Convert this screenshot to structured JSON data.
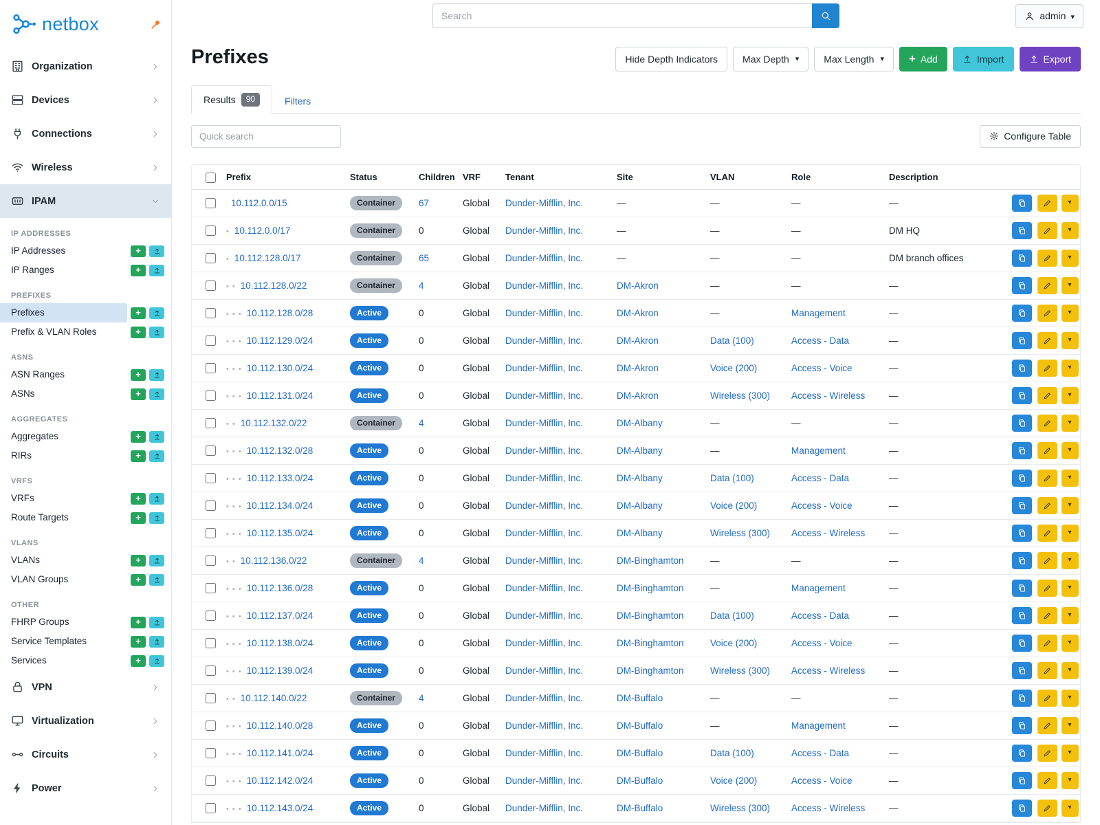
{
  "brand": {
    "name": "netbox"
  },
  "topbar": {
    "search_placeholder": "Search",
    "user_label": "admin"
  },
  "sidebar": {
    "top_items": [
      {
        "label": "Organization",
        "icon": "building-icon"
      },
      {
        "label": "Devices",
        "icon": "devices-icon"
      },
      {
        "label": "Connections",
        "icon": "connections-icon"
      },
      {
        "label": "Wireless",
        "icon": "wifi-icon"
      }
    ],
    "expanded_item": {
      "label": "IPAM",
      "icon": "ipam-icon"
    },
    "groups": [
      {
        "heading": "IP ADDRESSES",
        "items": [
          {
            "label": "IP Addresses"
          },
          {
            "label": "IP Ranges"
          }
        ]
      },
      {
        "heading": "PREFIXES",
        "items": [
          {
            "label": "Prefixes",
            "active": true
          },
          {
            "label": "Prefix & VLAN Roles"
          }
        ]
      },
      {
        "heading": "ASNS",
        "items": [
          {
            "label": "ASN Ranges"
          },
          {
            "label": "ASNs"
          }
        ]
      },
      {
        "heading": "AGGREGATES",
        "items": [
          {
            "label": "Aggregates"
          },
          {
            "label": "RIRs"
          }
        ]
      },
      {
        "heading": "VRFS",
        "items": [
          {
            "label": "VRFs"
          },
          {
            "label": "Route Targets"
          }
        ]
      },
      {
        "heading": "VLANS",
        "items": [
          {
            "label": "VLANs"
          },
          {
            "label": "VLAN Groups"
          }
        ]
      },
      {
        "heading": "OTHER",
        "items": [
          {
            "label": "FHRP Groups"
          },
          {
            "label": "Service Templates"
          },
          {
            "label": "Services"
          }
        ]
      }
    ],
    "bottom_items": [
      {
        "label": "VPN",
        "icon": "vpn-icon"
      },
      {
        "label": "Virtualization",
        "icon": "virtualization-icon"
      },
      {
        "label": "Circuits",
        "icon": "circuits-icon"
      },
      {
        "label": "Power",
        "icon": "power-icon"
      }
    ]
  },
  "page": {
    "title": "Prefixes",
    "toolbar": [
      {
        "label": "Hide Depth Indicators",
        "style": "outline"
      },
      {
        "label": "Max Depth",
        "style": "outline",
        "caret": true
      },
      {
        "label": "Max Length",
        "style": "outline",
        "caret": true
      },
      {
        "label": "Add",
        "style": "green",
        "icon": "plus-icon"
      },
      {
        "label": "Import",
        "style": "teal",
        "icon": "upload-icon"
      },
      {
        "label": "Export",
        "style": "purple",
        "icon": "export-icon"
      }
    ],
    "tabs": [
      {
        "label": "Results",
        "count": "90",
        "active": true
      },
      {
        "label": "Filters"
      }
    ],
    "quick_search_placeholder": "Quick search",
    "configure_table_label": "Configure Table"
  },
  "colors": {
    "link_blue": "#206bc4",
    "active_badge_blue": "#2079d2",
    "container_badge_gray": "#b0b7be",
    "add_green": "#23a55b",
    "import_teal": "#41c6d9",
    "export_purple": "#6f42c1",
    "edit_yellow": "#f3c00c",
    "pin_orange": "#f47b20"
  },
  "table": {
    "columns": [
      "Prefix",
      "Status",
      "Children",
      "VRF",
      "Tenant",
      "Site",
      "VLAN",
      "Role",
      "Description"
    ],
    "rows": [
      {
        "depth": 0,
        "prefix": "10.112.0.0/15",
        "status": "Container",
        "children": "67",
        "vrf": "Global",
        "tenant": "Dunder-Mifflin, Inc.",
        "site": "—",
        "vlan": "—",
        "role": "—",
        "description": "—"
      },
      {
        "depth": 1,
        "prefix": "10.112.0.0/17",
        "status": "Container",
        "children": "0",
        "vrf": "Global",
        "tenant": "Dunder-Mifflin, Inc.",
        "site": "—",
        "vlan": "—",
        "role": "—",
        "description": "DM HQ"
      },
      {
        "depth": 1,
        "prefix": "10.112.128.0/17",
        "status": "Container",
        "children": "65",
        "vrf": "Global",
        "tenant": "Dunder-Mifflin, Inc.",
        "site": "—",
        "vlan": "—",
        "role": "—",
        "description": "DM branch offices"
      },
      {
        "depth": 2,
        "prefix": "10.112.128.0/22",
        "status": "Container",
        "children": "4",
        "vrf": "Global",
        "tenant": "Dunder-Mifflin, Inc.",
        "site": "DM-Akron",
        "vlan": "—",
        "role": "—",
        "description": "—"
      },
      {
        "depth": 3,
        "prefix": "10.112.128.0/28",
        "status": "Active",
        "children": "0",
        "vrf": "Global",
        "tenant": "Dunder-Mifflin, Inc.",
        "site": "DM-Akron",
        "vlan": "—",
        "role": "Management",
        "description": "—"
      },
      {
        "depth": 3,
        "prefix": "10.112.129.0/24",
        "status": "Active",
        "children": "0",
        "vrf": "Global",
        "tenant": "Dunder-Mifflin, Inc.",
        "site": "DM-Akron",
        "vlan": "Data (100)",
        "role": "Access - Data",
        "description": "—"
      },
      {
        "depth": 3,
        "prefix": "10.112.130.0/24",
        "status": "Active",
        "children": "0",
        "vrf": "Global",
        "tenant": "Dunder-Mifflin, Inc.",
        "site": "DM-Akron",
        "vlan": "Voice (200)",
        "role": "Access - Voice",
        "description": "—"
      },
      {
        "depth": 3,
        "prefix": "10.112.131.0/24",
        "status": "Active",
        "children": "0",
        "vrf": "Global",
        "tenant": "Dunder-Mifflin, Inc.",
        "site": "DM-Akron",
        "vlan": "Wireless (300)",
        "role": "Access - Wireless",
        "description": "—"
      },
      {
        "depth": 2,
        "prefix": "10.112.132.0/22",
        "status": "Container",
        "children": "4",
        "vrf": "Global",
        "tenant": "Dunder-Mifflin, Inc.",
        "site": "DM-Albany",
        "vlan": "—",
        "role": "—",
        "description": "—"
      },
      {
        "depth": 3,
        "prefix": "10.112.132.0/28",
        "status": "Active",
        "children": "0",
        "vrf": "Global",
        "tenant": "Dunder-Mifflin, Inc.",
        "site": "DM-Albany",
        "vlan": "—",
        "role": "Management",
        "description": "—"
      },
      {
        "depth": 3,
        "prefix": "10.112.133.0/24",
        "status": "Active",
        "children": "0",
        "vrf": "Global",
        "tenant": "Dunder-Mifflin, Inc.",
        "site": "DM-Albany",
        "vlan": "Data (100)",
        "role": "Access - Data",
        "description": "—"
      },
      {
        "depth": 3,
        "prefix": "10.112.134.0/24",
        "status": "Active",
        "children": "0",
        "vrf": "Global",
        "tenant": "Dunder-Mifflin, Inc.",
        "site": "DM-Albany",
        "vlan": "Voice (200)",
        "role": "Access - Voice",
        "description": "—"
      },
      {
        "depth": 3,
        "prefix": "10.112.135.0/24",
        "status": "Active",
        "children": "0",
        "vrf": "Global",
        "tenant": "Dunder-Mifflin, Inc.",
        "site": "DM-Albany",
        "vlan": "Wireless (300)",
        "role": "Access - Wireless",
        "description": "—"
      },
      {
        "depth": 2,
        "prefix": "10.112.136.0/22",
        "status": "Container",
        "children": "4",
        "vrf": "Global",
        "tenant": "Dunder-Mifflin, Inc.",
        "site": "DM-Binghamton",
        "vlan": "—",
        "role": "—",
        "description": "—"
      },
      {
        "depth": 3,
        "prefix": "10.112.136.0/28",
        "status": "Active",
        "children": "0",
        "vrf": "Global",
        "tenant": "Dunder-Mifflin, Inc.",
        "site": "DM-Binghamton",
        "vlan": "—",
        "role": "Management",
        "description": "—"
      },
      {
        "depth": 3,
        "prefix": "10.112.137.0/24",
        "status": "Active",
        "children": "0",
        "vrf": "Global",
        "tenant": "Dunder-Mifflin, Inc.",
        "site": "DM-Binghamton",
        "vlan": "Data (100)",
        "role": "Access - Data",
        "description": "—"
      },
      {
        "depth": 3,
        "prefix": "10.112.138.0/24",
        "status": "Active",
        "children": "0",
        "vrf": "Global",
        "tenant": "Dunder-Mifflin, Inc.",
        "site": "DM-Binghamton",
        "vlan": "Voice (200)",
        "role": "Access - Voice",
        "description": "—"
      },
      {
        "depth": 3,
        "prefix": "10.112.139.0/24",
        "status": "Active",
        "children": "0",
        "vrf": "Global",
        "tenant": "Dunder-Mifflin, Inc.",
        "site": "DM-Binghamton",
        "vlan": "Wireless (300)",
        "role": "Access - Wireless",
        "description": "—"
      },
      {
        "depth": 2,
        "prefix": "10.112.140.0/22",
        "status": "Container",
        "children": "4",
        "vrf": "Global",
        "tenant": "Dunder-Mifflin, Inc.",
        "site": "DM-Buffalo",
        "vlan": "—",
        "role": "—",
        "description": "—"
      },
      {
        "depth": 3,
        "prefix": "10.112.140.0/28",
        "status": "Active",
        "children": "0",
        "vrf": "Global",
        "tenant": "Dunder-Mifflin, Inc.",
        "site": "DM-Buffalo",
        "vlan": "—",
        "role": "Management",
        "description": "—"
      },
      {
        "depth": 3,
        "prefix": "10.112.141.0/24",
        "status": "Active",
        "children": "0",
        "vrf": "Global",
        "tenant": "Dunder-Mifflin, Inc.",
        "site": "DM-Buffalo",
        "vlan": "Data (100)",
        "role": "Access - Data",
        "description": "—"
      },
      {
        "depth": 3,
        "prefix": "10.112.142.0/24",
        "status": "Active",
        "children": "0",
        "vrf": "Global",
        "tenant": "Dunder-Mifflin, Inc.",
        "site": "DM-Buffalo",
        "vlan": "Voice (200)",
        "role": "Access - Voice",
        "description": "—"
      },
      {
        "depth": 3,
        "prefix": "10.112.143.0/24",
        "status": "Active",
        "children": "0",
        "vrf": "Global",
        "tenant": "Dunder-Mifflin, Inc.",
        "site": "DM-Buffalo",
        "vlan": "Wireless (300)",
        "role": "Access - Wireless",
        "description": "—"
      }
    ]
  }
}
